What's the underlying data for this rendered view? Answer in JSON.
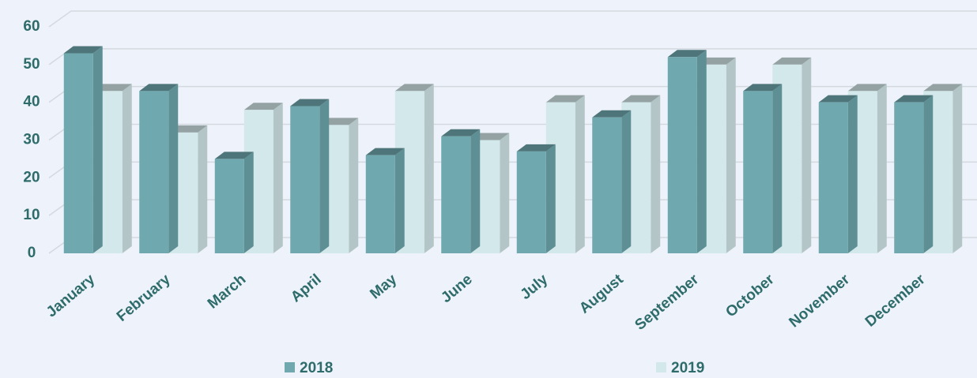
{
  "chart_data": {
    "type": "bar3d",
    "categories": [
      "January",
      "February",
      "March",
      "April",
      "May",
      "June",
      "July",
      "August",
      "September",
      "October",
      "November",
      "December"
    ],
    "series": [
      {
        "name": "2018",
        "color": "#6fa8ae",
        "values": [
          53,
          43,
          25,
          39,
          26,
          31,
          27,
          36,
          52,
          43,
          40,
          40
        ]
      },
      {
        "name": "2019",
        "color": "#d3e8ea",
        "values": [
          43,
          32,
          38,
          34,
          43,
          30,
          40,
          40,
          50,
          50,
          43,
          43
        ]
      }
    ],
    "ylim": [
      0,
      60
    ],
    "yticks": [
      0,
      10,
      20,
      30,
      40,
      50,
      60
    ],
    "grid": true,
    "legend": "bottom"
  }
}
